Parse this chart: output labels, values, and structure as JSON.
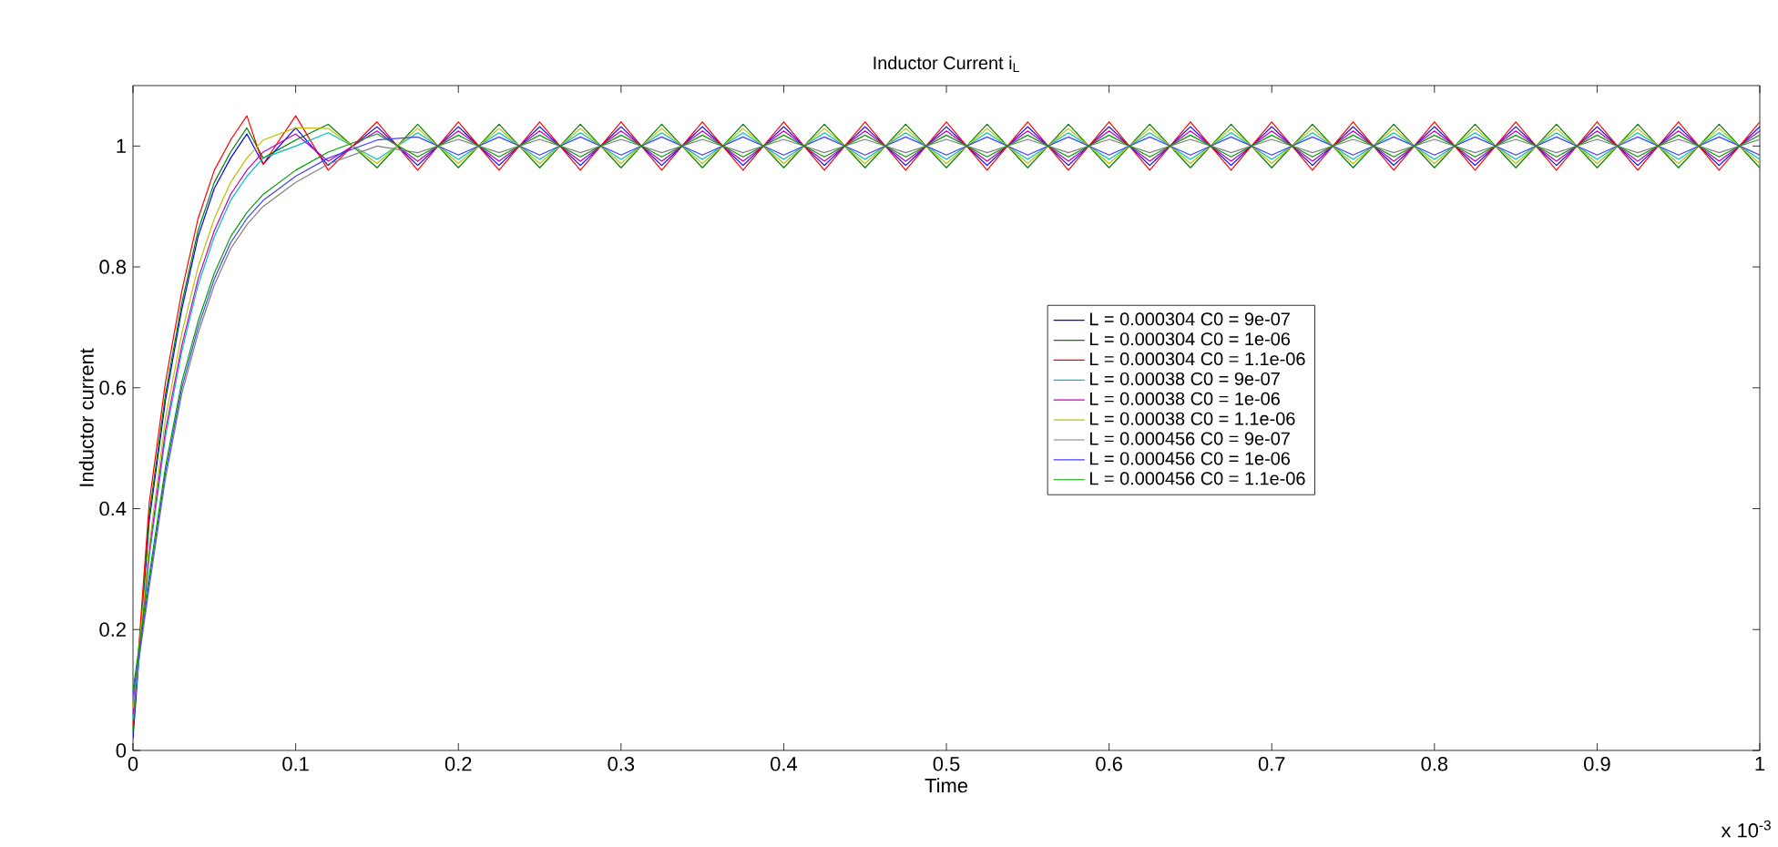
{
  "chart_data": {
    "type": "line",
    "title": "Inductor Current i$_{L}$",
    "xlabel": "Time",
    "ylabel": "Inductor current",
    "annotations": [
      "x 10$^{-3}$"
    ],
    "xlim": [
      0,
      1
    ],
    "ylim": [
      0,
      1.1
    ],
    "xticks": [
      0,
      0.1,
      0.2,
      0.3,
      0.4,
      0.5,
      0.6,
      0.7,
      0.8,
      0.9,
      1
    ],
    "yticks": [
      0,
      0.2,
      0.4,
      0.6,
      0.8,
      1
    ],
    "legend": "right",
    "x": [
      0,
      0.01,
      0.02,
      0.03,
      0.04,
      0.05,
      0.06,
      0.07,
      0.08,
      0.1,
      0.12,
      0.15,
      0.175,
      0.2,
      0.225,
      0.25,
      0.275,
      0.3,
      0.325,
      0.35,
      0.375,
      0.4,
      0.425,
      0.45,
      0.475,
      0.5,
      0.525,
      0.55,
      0.575,
      0.6,
      0.625,
      0.65,
      0.675,
      0.7,
      0.725,
      0.75,
      0.775,
      0.8,
      0.825,
      0.85,
      0.875,
      0.9,
      0.925,
      0.95,
      0.975,
      1
    ],
    "series": [
      {
        "name": "L = 0.000304 C0 = 9e-07",
        "color": "#0000ff",
        "values": [
          0.02,
          0.38,
          0.58,
          0.73,
          0.85,
          0.93,
          0.98,
          1.02,
          0.97,
          1.03,
          0.968,
          1.032,
          0.968,
          1.032,
          0.968,
          1.032,
          0.968,
          1.032,
          0.968,
          1.032,
          0.968,
          1.032,
          0.968,
          1.032,
          0.968,
          1.032,
          0.968,
          1.032,
          0.968,
          1.032,
          0.968,
          1.032,
          0.968,
          1.032,
          0.968,
          1.032,
          0.968,
          1.032,
          0.968,
          1.032,
          0.968,
          1.032,
          0.968,
          1.032,
          0.968,
          1.032
        ]
      },
      {
        "name": "L = 0.000304 C0 = 1e-06",
        "color": "#008000",
        "values": [
          0.03,
          0.39,
          0.59,
          0.74,
          0.86,
          0.94,
          0.99,
          1.03,
          0.98,
          1.01,
          1.036,
          0.964,
          1.036,
          0.964,
          1.036,
          0.964,
          1.036,
          0.964,
          1.036,
          0.964,
          1.036,
          0.964,
          1.036,
          0.964,
          1.036,
          0.964,
          1.036,
          0.964,
          1.036,
          0.964,
          1.036,
          0.964,
          1.036,
          0.964,
          1.036,
          0.964,
          1.036,
          0.964,
          1.036,
          0.964,
          1.036,
          0.964,
          1.036,
          0.964,
          1.036,
          0.964
        ]
      },
      {
        "name": "L = 0.000304 C0 = 1.1e-06",
        "color": "#ff0000",
        "values": [
          0.04,
          0.41,
          0.61,
          0.76,
          0.88,
          0.96,
          1.01,
          1.05,
          0.97,
          1.05,
          0.96,
          1.04,
          0.96,
          1.04,
          0.96,
          1.04,
          0.96,
          1.04,
          0.96,
          1.04,
          0.96,
          1.04,
          0.96,
          1.04,
          0.96,
          1.04,
          0.96,
          1.04,
          0.96,
          1.04,
          0.96,
          1.04,
          0.96,
          1.04,
          0.96,
          1.04,
          0.96,
          1.04,
          0.96,
          1.04,
          0.96,
          1.04,
          0.96,
          1.04,
          0.96,
          1.04
        ]
      },
      {
        "name": "L = 0.00038 C0 = 9e-07",
        "color": "#00bfbf",
        "values": [
          0.05,
          0.32,
          0.52,
          0.66,
          0.77,
          0.85,
          0.91,
          0.95,
          0.98,
          1.0,
          1.022,
          0.978,
          1.022,
          0.978,
          1.022,
          0.978,
          1.022,
          0.978,
          1.022,
          0.978,
          1.022,
          0.978,
          1.022,
          0.978,
          1.022,
          0.978,
          1.022,
          0.978,
          1.022,
          0.978,
          1.022,
          0.978,
          1.022,
          0.978,
          1.022,
          0.978,
          1.022,
          0.978,
          1.022,
          0.978,
          1.022,
          0.978,
          1.022,
          0.978,
          1.022,
          0.978
        ]
      },
      {
        "name": "L = 0.00038 C0 = 1e-06",
        "color": "#bf00bf",
        "values": [
          0.06,
          0.33,
          0.53,
          0.67,
          0.78,
          0.86,
          0.92,
          0.96,
          0.99,
          1.02,
          0.975,
          1.025,
          0.975,
          1.025,
          0.975,
          1.025,
          0.975,
          1.025,
          0.975,
          1.025,
          0.975,
          1.025,
          0.975,
          1.025,
          0.975,
          1.025,
          0.975,
          1.025,
          0.975,
          1.025,
          0.975,
          1.025,
          0.975,
          1.025,
          0.975,
          1.025,
          0.975,
          1.025,
          0.975,
          1.025,
          0.975,
          1.025,
          0.975,
          1.025,
          0.975,
          1.025
        ]
      },
      {
        "name": "L = 0.00038 C0 = 1.1e-06",
        "color": "#bfbf00",
        "values": [
          0.07,
          0.34,
          0.55,
          0.69,
          0.8,
          0.88,
          0.94,
          0.98,
          1.01,
          1.03,
          1.029,
          0.971,
          1.029,
          0.971,
          1.029,
          0.971,
          1.029,
          0.971,
          1.029,
          0.971,
          1.029,
          0.971,
          1.029,
          0.971,
          1.029,
          0.971,
          1.029,
          0.971,
          1.029,
          0.971,
          1.029,
          0.971,
          1.029,
          0.971,
          1.029,
          0.971,
          1.029,
          0.971,
          1.029,
          0.971,
          1.029,
          0.971,
          1.029,
          0.971,
          1.029,
          0.971
        ]
      },
      {
        "name": "L = 0.000456 C0 = 9e-07",
        "color": "#808080",
        "values": [
          0.08,
          0.27,
          0.45,
          0.59,
          0.69,
          0.77,
          0.83,
          0.87,
          0.9,
          0.94,
          0.97,
          1.0,
          0.989,
          1.011,
          0.989,
          1.011,
          0.989,
          1.011,
          0.989,
          1.011,
          0.989,
          1.011,
          0.989,
          1.011,
          0.989,
          1.011,
          0.989,
          1.011,
          0.989,
          1.011,
          0.989,
          1.011,
          0.989,
          1.011,
          0.989,
          1.011,
          0.989,
          1.011,
          0.989,
          1.011,
          0.989,
          1.011,
          0.989,
          1.011,
          0.989,
          1.011
        ]
      },
      {
        "name": "L = 0.000456 C0 = 1e-06",
        "color": "#4040ff",
        "values": [
          0.09,
          0.28,
          0.46,
          0.6,
          0.7,
          0.78,
          0.84,
          0.88,
          0.91,
          0.95,
          0.98,
          1.01,
          1.015,
          0.985,
          1.015,
          0.985,
          1.015,
          0.985,
          1.015,
          0.985,
          1.015,
          0.985,
          1.015,
          0.985,
          1.015,
          0.985,
          1.015,
          0.985,
          1.015,
          0.985,
          1.015,
          0.985,
          1.015,
          0.985,
          1.015,
          0.985,
          1.015,
          0.985,
          1.015,
          0.985,
          1.015,
          0.985,
          1.015,
          0.985,
          1.015,
          0.985
        ]
      },
      {
        "name": "L = 0.000456 C0 = 1.1e-06",
        "color": "#00a000",
        "values": [
          0.1,
          0.29,
          0.47,
          0.61,
          0.71,
          0.79,
          0.85,
          0.89,
          0.92,
          0.96,
          0.99,
          1.02,
          0.982,
          1.018,
          0.982,
          1.018,
          0.982,
          1.018,
          0.982,
          1.018,
          0.982,
          1.018,
          0.982,
          1.018,
          0.982,
          1.018,
          0.982,
          1.018,
          0.982,
          1.018,
          0.982,
          1.018,
          0.982,
          1.018,
          0.982,
          1.018,
          0.982,
          1.018,
          0.982,
          1.018,
          0.982,
          1.018,
          0.982,
          1.018,
          0.982,
          1.018
        ]
      }
    ]
  }
}
